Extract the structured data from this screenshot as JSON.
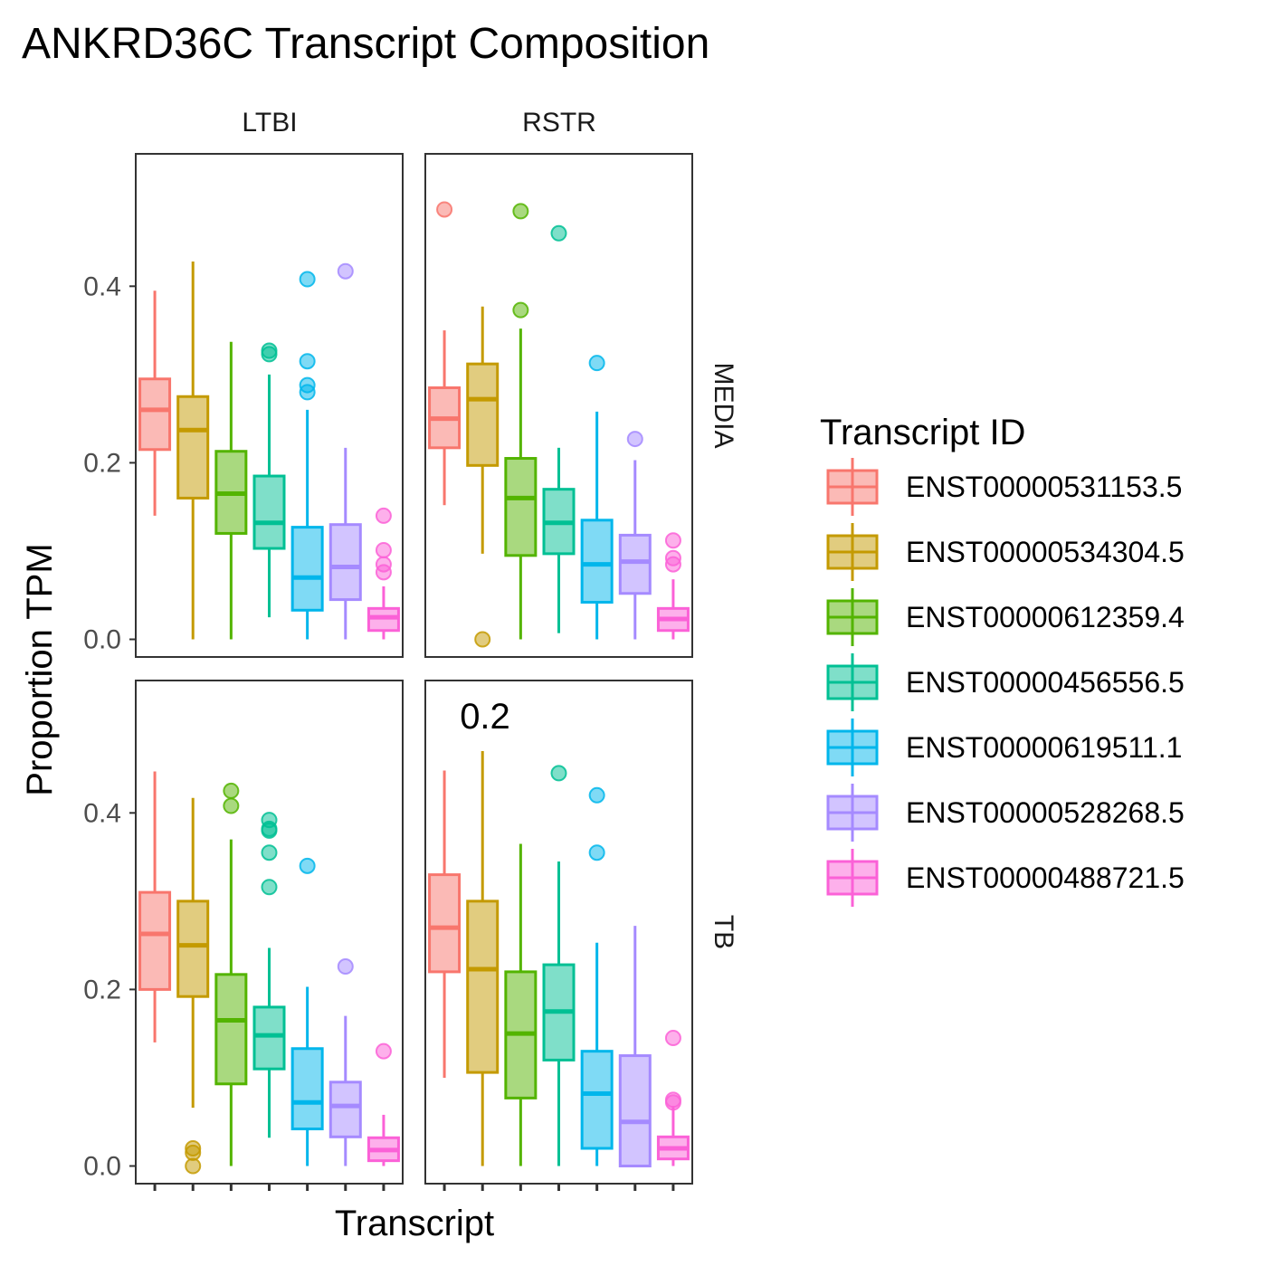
{
  "chart_data": {
    "type": "boxplot",
    "title": "ANKRD36C Transcript Composition",
    "xlabel": "Transcript",
    "ylabel": "Proportion TPM",
    "ylim": [
      -0.02,
      0.55
    ],
    "yticks": [
      "0.0",
      "0.2",
      "0.4"
    ],
    "ytick_values": [
      0,
      0.2,
      0.4
    ],
    "grid": false,
    "legend_position": "right",
    "legend_title": "Transcript ID",
    "columns": [
      "LTBI",
      "RSTR"
    ],
    "rows": [
      "MEDIA",
      "TB"
    ],
    "annotation": {
      "panel": "TB-RSTR",
      "text": "0.2"
    },
    "series": [
      {
        "name": "ENST00000531153.5",
        "color": "#F8766D"
      },
      {
        "name": "ENST00000534304.5",
        "color": "#C49A00"
      },
      {
        "name": "ENST00000612359.4",
        "color": "#53B400"
      },
      {
        "name": "ENST00000456556.5",
        "color": "#00C094"
      },
      {
        "name": "ENST00000619511.1",
        "color": "#00B6EB"
      },
      {
        "name": "ENST00000528268.5",
        "color": "#A58AFF"
      },
      {
        "name": "ENST00000488721.5",
        "color": "#FB61D7"
      }
    ],
    "panels": [
      {
        "row": "MEDIA",
        "col": "LTBI",
        "boxes": [
          {
            "low": 0.14,
            "q1": 0.215,
            "median": 0.26,
            "q3": 0.295,
            "high": 0.395,
            "outliers": []
          },
          {
            "low": 0.0,
            "q1": 0.16,
            "median": 0.237,
            "q3": 0.275,
            "high": 0.428,
            "outliers": []
          },
          {
            "low": 0.0,
            "q1": 0.12,
            "median": 0.165,
            "q3": 0.213,
            "high": 0.337,
            "outliers": []
          },
          {
            "low": 0.025,
            "q1": 0.103,
            "median": 0.132,
            "q3": 0.185,
            "high": 0.3,
            "outliers": [
              0.327,
              0.323
            ]
          },
          {
            "low": 0.0,
            "q1": 0.033,
            "median": 0.07,
            "q3": 0.127,
            "high": 0.26,
            "outliers": [
              0.408,
              0.315,
              0.288,
              0.28
            ]
          },
          {
            "low": 0.0,
            "q1": 0.045,
            "median": 0.082,
            "q3": 0.13,
            "high": 0.217,
            "outliers": [
              0.417
            ]
          },
          {
            "low": 0.0,
            "q1": 0.01,
            "median": 0.025,
            "q3": 0.035,
            "high": 0.06,
            "outliers": [
              0.14,
              0.101,
              0.085,
              0.076
            ]
          }
        ]
      },
      {
        "row": "MEDIA",
        "col": "RSTR",
        "boxes": [
          {
            "low": 0.152,
            "q1": 0.217,
            "median": 0.25,
            "q3": 0.285,
            "high": 0.35,
            "outliers": [
              0.487
            ]
          },
          {
            "low": 0.097,
            "q1": 0.197,
            "median": 0.272,
            "q3": 0.312,
            "high": 0.377,
            "outliers": [
              0.0
            ]
          },
          {
            "low": 0.0,
            "q1": 0.095,
            "median": 0.16,
            "q3": 0.205,
            "high": 0.352,
            "outliers": [
              0.485,
              0.373
            ]
          },
          {
            "low": 0.007,
            "q1": 0.097,
            "median": 0.132,
            "q3": 0.17,
            "high": 0.217,
            "outliers": [
              0.46
            ]
          },
          {
            "low": 0.0,
            "q1": 0.042,
            "median": 0.085,
            "q3": 0.135,
            "high": 0.258,
            "outliers": [
              0.313
            ]
          },
          {
            "low": 0.0,
            "q1": 0.052,
            "median": 0.088,
            "q3": 0.118,
            "high": 0.203,
            "outliers": [
              0.227
            ]
          },
          {
            "low": 0.0,
            "q1": 0.01,
            "median": 0.023,
            "q3": 0.035,
            "high": 0.068,
            "outliers": [
              0.112,
              0.092,
              0.085
            ]
          }
        ]
      },
      {
        "row": "TB",
        "col": "LTBI",
        "boxes": [
          {
            "low": 0.14,
            "q1": 0.2,
            "median": 0.263,
            "q3": 0.31,
            "high": 0.447,
            "outliers": []
          },
          {
            "low": 0.066,
            "q1": 0.192,
            "median": 0.25,
            "q3": 0.3,
            "high": 0.417,
            "outliers": [
              0.02,
              0.015,
              0.0
            ]
          },
          {
            "low": 0.0,
            "q1": 0.093,
            "median": 0.165,
            "q3": 0.217,
            "high": 0.37,
            "outliers": [
              0.425,
              0.408
            ]
          },
          {
            "low": 0.032,
            "q1": 0.11,
            "median": 0.148,
            "q3": 0.18,
            "high": 0.247,
            "outliers": [
              0.392,
              0.382,
              0.38,
              0.355,
              0.316
            ]
          },
          {
            "low": 0.0,
            "q1": 0.042,
            "median": 0.072,
            "q3": 0.133,
            "high": 0.203,
            "outliers": [
              0.34
            ]
          },
          {
            "low": 0.0,
            "q1": 0.033,
            "median": 0.068,
            "q3": 0.095,
            "high": 0.17,
            "outliers": [
              0.226
            ]
          },
          {
            "low": 0.0,
            "q1": 0.006,
            "median": 0.018,
            "q3": 0.032,
            "high": 0.058,
            "outliers": [
              0.13
            ]
          }
        ]
      },
      {
        "row": "TB",
        "col": "RSTR",
        "boxes": [
          {
            "low": 0.1,
            "q1": 0.22,
            "median": 0.27,
            "q3": 0.33,
            "high": 0.448,
            "outliers": []
          },
          {
            "low": 0.0,
            "q1": 0.106,
            "median": 0.223,
            "q3": 0.3,
            "high": 0.47,
            "outliers": []
          },
          {
            "low": 0.0,
            "q1": 0.077,
            "median": 0.15,
            "q3": 0.22,
            "high": 0.365,
            "outliers": []
          },
          {
            "low": 0.0,
            "q1": 0.12,
            "median": 0.175,
            "q3": 0.228,
            "high": 0.345,
            "outliers": [
              0.445
            ]
          },
          {
            "low": 0.0,
            "q1": 0.02,
            "median": 0.082,
            "q3": 0.13,
            "high": 0.253,
            "outliers": [
              0.42,
              0.355
            ]
          },
          {
            "low": 0.0,
            "q1": 0.0,
            "median": 0.05,
            "q3": 0.125,
            "high": 0.272,
            "outliers": []
          },
          {
            "low": 0.0,
            "q1": 0.008,
            "median": 0.02,
            "q3": 0.033,
            "high": 0.068,
            "outliers": [
              0.145,
              0.075,
              0.072
            ]
          }
        ]
      }
    ]
  }
}
